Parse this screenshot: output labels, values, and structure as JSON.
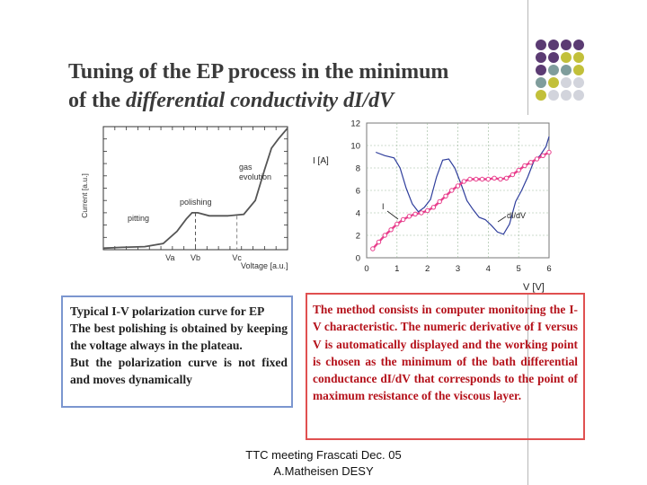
{
  "title": {
    "line1": "Tuning of the EP process in the minimum",
    "line2_prefix": "of the ",
    "line2_italic": "differential conductivity dI/dV"
  },
  "colors": {
    "dot_purple": "#5b3b73",
    "dot_teal": "#7f9d9c",
    "dot_olive": "#c2c03a",
    "dot_gray": "#d2d4dc",
    "iv_curve": "#555555",
    "current_curve": "#e83e8c",
    "didv_curve": "#2f3e9c",
    "left_box_border": "#7b96cf",
    "right_box_border": "#e05050",
    "right_box_text": "#b5121b"
  },
  "dots": [
    [
      "dot_purple",
      "dot_purple",
      "dot_purple",
      "dot_purple"
    ],
    [
      "dot_purple",
      "dot_purple",
      "dot_olive",
      "dot_olive"
    ],
    [
      "dot_purple",
      "dot_teal",
      "dot_teal",
      "dot_olive"
    ],
    [
      "dot_teal",
      "dot_olive",
      "dot_gray",
      "dot_gray"
    ],
    [
      "dot_olive",
      "dot_gray",
      "dot_gray",
      "dot_gray"
    ]
  ],
  "chart_data": [
    {
      "type": "line",
      "xlabel": "Voltage [a.u.]",
      "ylabel": "Current [a.u.]",
      "x_ticks": [
        "Va",
        "Vb",
        "Vc"
      ],
      "annotations": [
        "pitting",
        "polishing",
        "gas evolution"
      ],
      "series": [
        {
          "x": [
            0,
            0.8,
            1.8,
            2.6,
            3.2,
            3.6,
            3.85,
            4.1,
            4.6,
            5.4,
            6.1,
            6.6,
            7.0,
            7.3,
            7.6,
            8.0
          ],
          "y": [
            0.1,
            0.15,
            0.2,
            0.4,
            1.2,
            2.0,
            2.4,
            2.4,
            2.2,
            2.2,
            2.3,
            3.2,
            5.2,
            6.6,
            7.2,
            7.9
          ]
        }
      ]
    },
    {
      "type": "line",
      "ylabel": "I [A]",
      "xlabel": "V [V]",
      "xlim": [
        0,
        6
      ],
      "ylim": [
        0,
        12
      ],
      "x_ticks": [
        "0",
        "1",
        "2",
        "3",
        "4",
        "5",
        "6"
      ],
      "y_ticks": [
        "0",
        "2",
        "4",
        "6",
        "8",
        "10",
        "12"
      ],
      "series": [
        {
          "name": "I",
          "x": [
            0.2,
            0.4,
            0.6,
            0.8,
            1.0,
            1.2,
            1.4,
            1.6,
            1.8,
            2.0,
            2.2,
            2.4,
            2.6,
            2.8,
            3.0,
            3.2,
            3.4,
            3.6,
            3.8,
            4.0,
            4.2,
            4.4,
            4.6,
            4.8,
            5.0,
            5.2,
            5.4,
            5.6,
            5.8,
            6.0
          ],
          "y": [
            0.8,
            1.4,
            2.0,
            2.5,
            3.0,
            3.4,
            3.7,
            3.9,
            4.0,
            4.2,
            4.5,
            5.0,
            5.5,
            6.0,
            6.4,
            6.8,
            7.0,
            7.0,
            7.0,
            7.0,
            7.1,
            7.0,
            7.1,
            7.4,
            7.8,
            8.2,
            8.5,
            8.8,
            9.1,
            9.4
          ]
        },
        {
          "name": "dI/dV",
          "x": [
            0.3,
            0.6,
            0.9,
            1.1,
            1.3,
            1.5,
            1.7,
            1.9,
            2.1,
            2.3,
            2.5,
            2.7,
            2.9,
            3.1,
            3.3,
            3.5,
            3.7,
            3.9,
            4.1,
            4.3,
            4.5,
            4.7,
            4.9,
            5.1,
            5.3,
            5.5,
            5.7,
            5.9,
            6.0
          ],
          "y": [
            9.4,
            9.1,
            8.9,
            8.0,
            6.2,
            4.8,
            4.1,
            4.5,
            5.2,
            7.2,
            8.7,
            8.8,
            8.0,
            6.6,
            5.1,
            4.3,
            3.6,
            3.4,
            2.9,
            2.3,
            2.1,
            3.0,
            5.0,
            6.0,
            7.2,
            8.6,
            9.1,
            9.9,
            10.8
          ]
        }
      ]
    }
  ],
  "left_box": {
    "heading": "Typical I-V polarization curve for EP",
    "para1": "The best polishing is obtained by keeping the voltage always in the plateau.",
    "para2": "But the polarization curve is not fixed and moves dynamically"
  },
  "right_box": {
    "text": "The method consists in computer monitoring the I-V characteristic. The numeric derivative of I versus V is automatically displayed and the working point is chosen as the minimum of the bath differential conductance dI/dV that corresponds to the point of maximum resistance of the viscous layer."
  },
  "footer": {
    "line1": "TTC meeting Frascati Dec. 05",
    "line2": "A.Matheisen DESY"
  }
}
